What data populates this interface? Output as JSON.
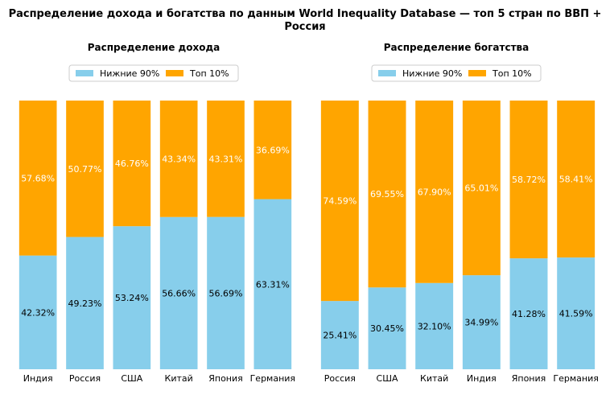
{
  "figure_title_line1": "Распределение дохода и богатства по данным World Inequality Database — топ 5 стран по ВВП +",
  "figure_title_line2": "Россия",
  "colors": {
    "bottom": "#87CEEB",
    "top": "#FFA500"
  },
  "chart_data": [
    {
      "type": "bar",
      "stacked": true,
      "title": "Распределение дохода",
      "categories": [
        "Индия",
        "Россия",
        "США",
        "Китай",
        "Япония",
        "Германия"
      ],
      "series": [
        {
          "name": "Нижние 90%",
          "values": [
            42.32,
            49.23,
            53.24,
            56.66,
            56.69,
            63.31
          ]
        },
        {
          "name": "Топ 10%",
          "values": [
            57.68,
            50.77,
            46.76,
            43.34,
            43.31,
            36.69
          ]
        }
      ],
      "labels_bottom": [
        "42.32%",
        "49.23%",
        "53.24%",
        "56.66%",
        "56.69%",
        "63.31%"
      ],
      "labels_top": [
        "57.68%",
        "50.77%",
        "46.76%",
        "43.34%",
        "43.31%",
        "36.69%"
      ],
      "ylim": [
        0,
        100
      ],
      "legend_position": "upper-center",
      "xlabel": "",
      "ylabel": ""
    },
    {
      "type": "bar",
      "stacked": true,
      "title": "Распределение богатства",
      "categories": [
        "Россия",
        "США",
        "Китай",
        "Индия",
        "Япония",
        "Германия"
      ],
      "series": [
        {
          "name": "Нижние 90%",
          "values": [
            25.41,
            30.45,
            32.1,
            34.99,
            41.28,
            41.59
          ]
        },
        {
          "name": "Топ 10%",
          "values": [
            74.59,
            69.55,
            67.9,
            65.01,
            58.72,
            58.41
          ]
        }
      ],
      "labels_bottom": [
        "25.41%",
        "30.45%",
        "32.10%",
        "34.99%",
        "41.28%",
        "41.59%"
      ],
      "labels_top": [
        "74.59%",
        "69.55%",
        "67.90%",
        "65.01%",
        "58.72%",
        "58.41%"
      ],
      "ylim": [
        0,
        100
      ],
      "legend_position": "upper-center",
      "xlabel": "",
      "ylabel": ""
    }
  ]
}
